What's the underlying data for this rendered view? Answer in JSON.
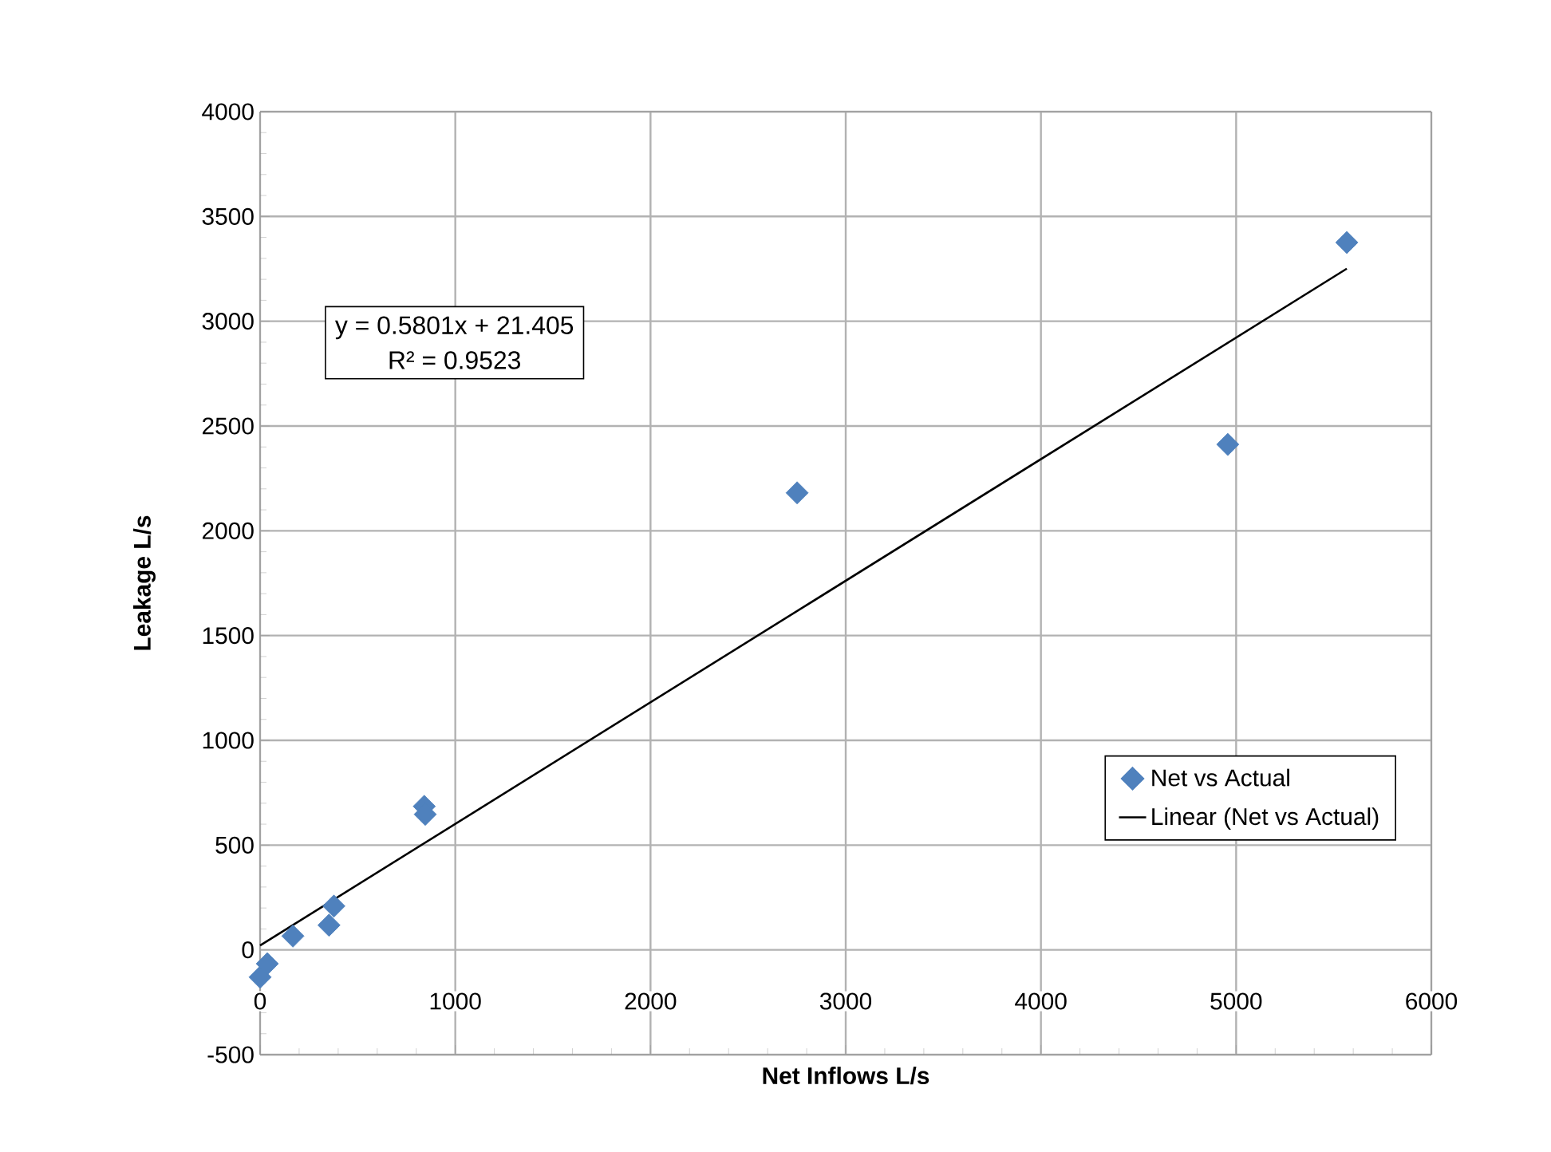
{
  "chart_data": {
    "type": "scatter",
    "xlabel": "Net Inflows L/s",
    "ylabel": "Leakage L/s",
    "annotations": [
      "y = 0.5801x + 21.405",
      "R² = 0.9523"
    ],
    "series": [
      {
        "name": "Net vs Actual",
        "color": "#4f81bd",
        "x": [
          0,
          37,
          168,
          353,
          378,
          841,
          846,
          2751,
          4957,
          5567
        ],
        "values": [
          -130,
          -66,
          66,
          118,
          209,
          685,
          647,
          2181,
          2412,
          3376
        ]
      },
      {
        "name": "Linear (Net vs Actual)",
        "type": "line",
        "marker": "none",
        "color": "#000000",
        "x": [
          0,
          5567
        ],
        "values": [
          21,
          3251
        ]
      }
    ],
    "xlim": [
      0,
      6000
    ],
    "ylim": [
      -500,
      4000
    ],
    "xticks": [
      0,
      1000,
      2000,
      3000,
      4000,
      5000,
      6000
    ],
    "yticks": [
      -500,
      0,
      500,
      1000,
      1500,
      2000,
      2500,
      3000,
      3500,
      4000
    ],
    "grid": true,
    "legend": "bottom right",
    "marker": "diamond",
    "line_style": "solid"
  }
}
